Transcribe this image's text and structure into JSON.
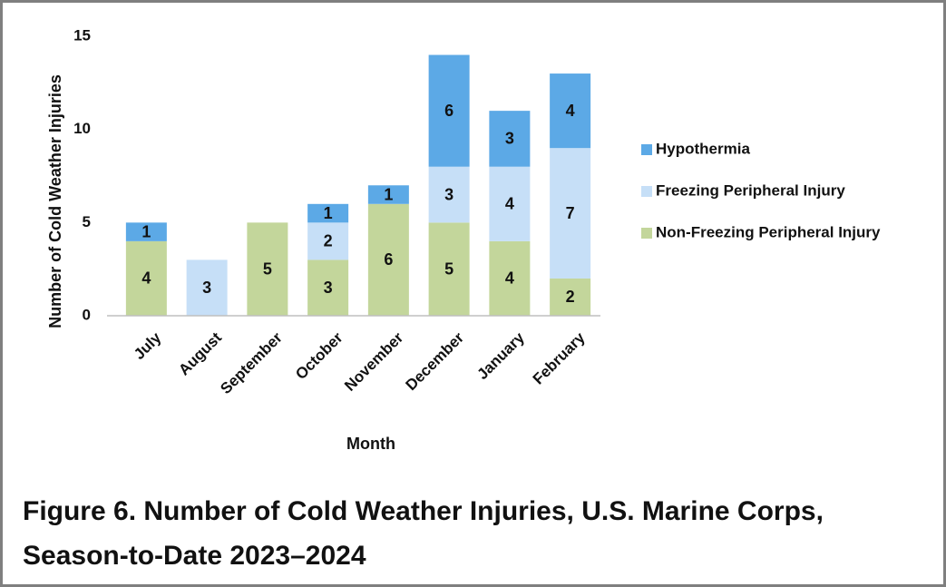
{
  "chart_data": {
    "type": "bar",
    "stacked": true,
    "title": "Figure 6. Number of Cold Weather Injuries, U.S. Marine Corps,",
    "title_line2": "Season-to-Date 2023–2024",
    "xlabel": "Month",
    "ylabel": "Number of Cold Weather Injuries",
    "categories": [
      "July",
      "August",
      "September",
      "October",
      "November",
      "December",
      "January",
      "February"
    ],
    "series": [
      {
        "name": "Non-Freezing Peripheral Injury",
        "color": "#c3d69b",
        "values": [
          4,
          null,
          5,
          3,
          6,
          5,
          4,
          2
        ]
      },
      {
        "name": "Freezing Peripheral Injury",
        "color": "#c6dff7",
        "values": [
          null,
          3,
          null,
          2,
          null,
          3,
          4,
          7
        ]
      },
      {
        "name": "Hypothermia",
        "color": "#5ca9e6",
        "values": [
          1,
          null,
          null,
          1,
          1,
          6,
          3,
          4
        ]
      }
    ],
    "ylim": [
      0,
      15
    ],
    "yticks": [
      0,
      5,
      10,
      15
    ],
    "legend": "right"
  }
}
